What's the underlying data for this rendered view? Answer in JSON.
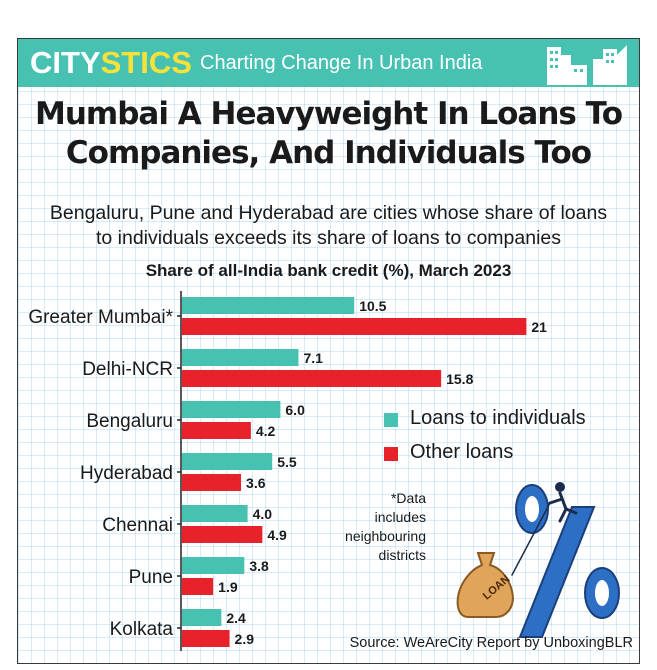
{
  "header": {
    "brand_part1": "CITY",
    "brand_part2": "STICS",
    "tagline": "Charting Change In Urban India"
  },
  "title_line1": "Mumbai A Heavyweight In Loans To",
  "title_line2": "Companies, And Individuals Too",
  "subtitle_line1": "Bengaluru, Pune and Hyderabad are cities whose share of loans",
  "subtitle_line2": "to individuals exceeds its share of loans to companies",
  "note_lines": [
    "*Data",
    "includes",
    "neighbouring",
    "districts"
  ],
  "source": "Source: WeAreCity Report by UnboxingBLR",
  "colors": {
    "individuals": "#47c1b2",
    "other": "#e8222b",
    "banner": "#47c1b2",
    "brand_accent": "#f7e23a"
  },
  "chart_data": {
    "type": "bar",
    "orientation": "horizontal",
    "title": "Share of all-India bank credit (%), March 2023",
    "categories": [
      "Greater Mumbai*",
      "Delhi-NCR",
      "Bengaluru",
      "Hyderabad",
      "Chennai",
      "Pune",
      "Kolkata"
    ],
    "series": [
      {
        "name": "Loans to individuals",
        "values": [
          10.5,
          7.1,
          6.0,
          5.5,
          4.0,
          3.8,
          2.4
        ],
        "labels": [
          "10.5",
          "7.1",
          "6.0",
          "5.5",
          "4.0",
          "3.8",
          "2.4"
        ]
      },
      {
        "name": "Other loans",
        "values": [
          21,
          15.8,
          4.2,
          3.6,
          4.9,
          1.9,
          2.9
        ],
        "labels": [
          "21",
          "15.8",
          "4.2",
          "3.6",
          "4.9",
          "1.9",
          "2.9"
        ]
      }
    ],
    "legend_position": "right",
    "grid": false
  }
}
